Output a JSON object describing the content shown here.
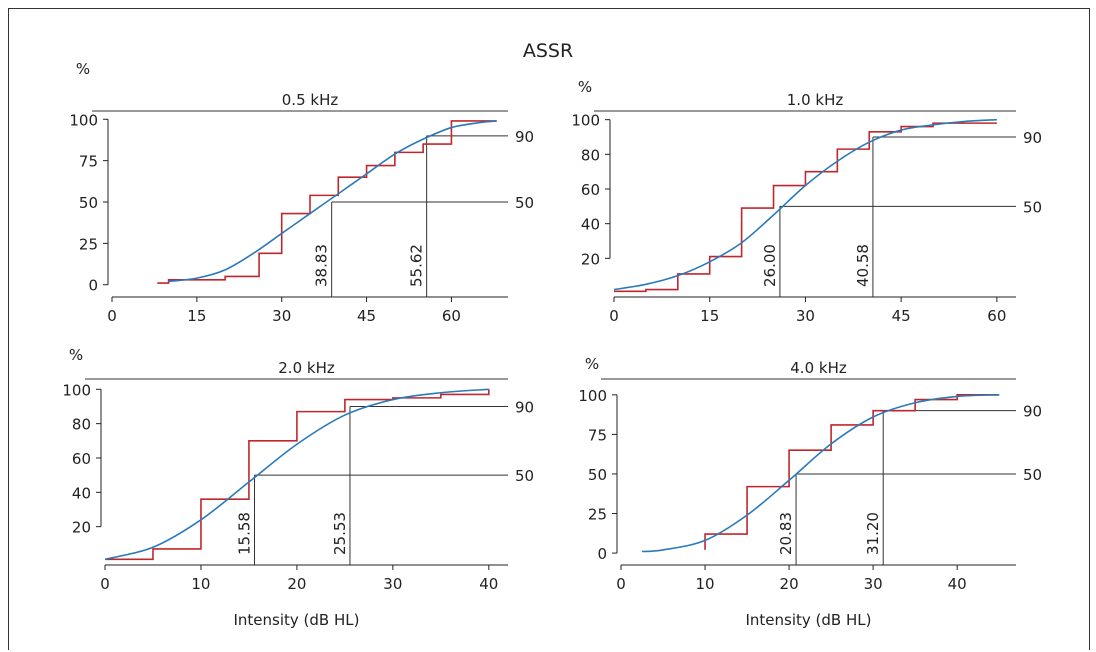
{
  "title": "ASSR",
  "colors": {
    "step": "#c0272d",
    "curve": "#2a7ab9",
    "axis": "#222222",
    "line": "#333333"
  },
  "chart_data": [
    {
      "type": "line",
      "title": "0.5 kHz",
      "ylabel": "%",
      "xlabel": "",
      "xlim": [
        0,
        70
      ],
      "ylim": [
        -5,
        105
      ],
      "xticks": [
        0,
        15,
        30,
        45,
        60
      ],
      "yticks": [
        0,
        25,
        50,
        75,
        100
      ],
      "reference_lines": [
        {
          "value": 50,
          "label": "50"
        },
        {
          "value": 90,
          "label": "90"
        }
      ],
      "thresholds": [
        {
          "x": 38.83,
          "y": 50,
          "label": "38.83"
        },
        {
          "x": 55.62,
          "y": 90,
          "label": "55.62"
        }
      ],
      "series": [
        {
          "kind": "step",
          "points": [
            [
              8,
              1
            ],
            [
              10,
              3
            ],
            [
              20,
              5
            ],
            [
              26,
              19
            ],
            [
              30,
              43
            ],
            [
              35,
              54
            ],
            [
              40,
              65
            ],
            [
              45,
              72
            ],
            [
              50,
              80
            ],
            [
              55,
              85
            ],
            [
              60,
              99
            ],
            [
              68,
              99
            ]
          ]
        },
        {
          "kind": "curve",
          "points": [
            [
              10,
              2
            ],
            [
              15,
              4
            ],
            [
              20,
              9
            ],
            [
              25,
              19
            ],
            [
              30,
              31
            ],
            [
              35,
              43
            ],
            [
              40,
              55
            ],
            [
              45,
              67
            ],
            [
              50,
              79
            ],
            [
              55,
              88
            ],
            [
              60,
              95
            ],
            [
              65,
              98
            ],
            [
              68,
              99
            ]
          ]
        }
      ]
    },
    {
      "type": "line",
      "title": "1.0 kHz",
      "ylabel": "%",
      "xlabel": "",
      "xlim": [
        0,
        63
      ],
      "ylim": [
        0,
        105
      ],
      "xticks": [
        0,
        15,
        30,
        45,
        60
      ],
      "yticks": [
        20,
        40,
        60,
        80,
        100
      ],
      "reference_lines": [
        {
          "value": 50,
          "label": "50"
        },
        {
          "value": 90,
          "label": "90"
        }
      ],
      "thresholds": [
        {
          "x": 26.0,
          "y": 50,
          "label": "26.00"
        },
        {
          "x": 40.58,
          "y": 90,
          "label": "40.58"
        }
      ],
      "series": [
        {
          "kind": "step",
          "points": [
            [
              0,
              1
            ],
            [
              5,
              2
            ],
            [
              10,
              11
            ],
            [
              15,
              21
            ],
            [
              20,
              49
            ],
            [
              25,
              62
            ],
            [
              30,
              70
            ],
            [
              35,
              83
            ],
            [
              40,
              93
            ],
            [
              45,
              96
            ],
            [
              50,
              98
            ],
            [
              60,
              98
            ]
          ]
        },
        {
          "kind": "curve",
          "points": [
            [
              0,
              2
            ],
            [
              5,
              5
            ],
            [
              10,
              10
            ],
            [
              15,
              18
            ],
            [
              20,
              29
            ],
            [
              25,
              45
            ],
            [
              30,
              62
            ],
            [
              35,
              76
            ],
            [
              40,
              87
            ],
            [
              45,
              94
            ],
            [
              50,
              97
            ],
            [
              55,
              99
            ],
            [
              60,
              100
            ]
          ]
        }
      ]
    },
    {
      "type": "line",
      "title": "2.0 kHz",
      "ylabel": "%",
      "xlabel": "Intensity (dB HL)",
      "xlim": [
        0,
        42
      ],
      "ylim": [
        0,
        106
      ],
      "xticks": [
        0,
        10,
        20,
        30,
        40
      ],
      "yticks": [
        20,
        40,
        60,
        80,
        100
      ],
      "reference_lines": [
        {
          "value": 50,
          "label": "50"
        },
        {
          "value": 90,
          "label": "90"
        }
      ],
      "thresholds": [
        {
          "x": 15.58,
          "y": 50,
          "label": "15.58"
        },
        {
          "x": 25.53,
          "y": 90,
          "label": "25.53"
        }
      ],
      "series": [
        {
          "kind": "step",
          "points": [
            [
              0,
              1
            ],
            [
              5,
              7
            ],
            [
              10,
              36
            ],
            [
              15,
              70
            ],
            [
              20,
              87
            ],
            [
              25,
              94
            ],
            [
              30,
              95
            ],
            [
              35,
              97
            ],
            [
              40,
              100
            ]
          ]
        },
        {
          "kind": "curve",
          "points": [
            [
              0,
              1
            ],
            [
              5,
              8
            ],
            [
              10,
              24
            ],
            [
              15,
              46
            ],
            [
              20,
              68
            ],
            [
              25,
              85
            ],
            [
              30,
              94
            ],
            [
              35,
              98
            ],
            [
              40,
              100
            ]
          ]
        }
      ]
    },
    {
      "type": "line",
      "title": "4.0 kHz",
      "ylabel": "%",
      "xlabel": "Intensity (dB HL)",
      "xlim": [
        0,
        47
      ],
      "ylim": [
        -5,
        110
      ],
      "xticks": [
        0,
        10,
        20,
        30,
        40
      ],
      "yticks": [
        0,
        25,
        50,
        75,
        100
      ],
      "reference_lines": [
        {
          "value": 50,
          "label": "50"
        },
        {
          "value": 90,
          "label": "90"
        }
      ],
      "thresholds": [
        {
          "x": 20.83,
          "y": 50,
          "label": "20.83"
        },
        {
          "x": 31.2,
          "y": 90,
          "label": "31.20"
        }
      ],
      "series": [
        {
          "kind": "step",
          "points": [
            [
              10,
              2
            ],
            [
              10,
              12
            ],
            [
              15,
              42
            ],
            [
              20,
              65
            ],
            [
              25,
              81
            ],
            [
              30,
              90
            ],
            [
              35,
              97
            ],
            [
              40,
              100
            ],
            [
              45,
              100
            ]
          ]
        },
        {
          "kind": "curve",
          "points": [
            [
              2.5,
              1
            ],
            [
              5,
              2
            ],
            [
              10,
              8
            ],
            [
              15,
              24
            ],
            [
              20,
              46
            ],
            [
              25,
              69
            ],
            [
              30,
              86
            ],
            [
              35,
              95
            ],
            [
              40,
              99
            ],
            [
              45,
              100
            ]
          ]
        }
      ]
    }
  ]
}
